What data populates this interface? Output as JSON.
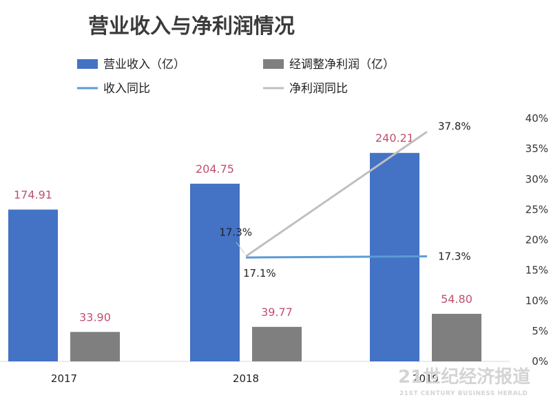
{
  "chart_data": {
    "type": "bar",
    "title": "营业收入与净利润情况",
    "categories": [
      "2017",
      "2018",
      "2019"
    ],
    "series": [
      {
        "name": "营业收入（亿）",
        "kind": "bar",
        "axis": "left",
        "color": "#4472c4",
        "values": [
          174.91,
          204.75,
          240.21
        ],
        "labels": [
          "174.91",
          "204.75",
          "240.21"
        ]
      },
      {
        "name": "经调整净利润（亿）",
        "kind": "bar",
        "axis": "left",
        "color": "#7f7f7f",
        "values": [
          33.9,
          39.77,
          54.8
        ],
        "labels": [
          "33.90",
          "39.77",
          "54.80"
        ]
      },
      {
        "name": "收入同比",
        "kind": "line",
        "axis": "right",
        "color": "#5b9bd5",
        "x": [
          "2018",
          "2019"
        ],
        "values": [
          17.1,
          17.3
        ],
        "labels": [
          "17.1%",
          "17.3%"
        ]
      },
      {
        "name": "净利润同比",
        "kind": "line",
        "axis": "right",
        "color": "#bfbfbf",
        "x": [
          "2018",
          "2019"
        ],
        "values": [
          17.3,
          37.8
        ],
        "labels": [
          "17.3%",
          "37.8%"
        ]
      }
    ],
    "y_left": {
      "range": [
        0,
        280
      ],
      "ticks_shown": false
    },
    "y_right": {
      "range": [
        0,
        40
      ],
      "ticks": [
        "0%",
        "5%",
        "10%",
        "15%",
        "20%",
        "25%",
        "30%",
        "35%",
        "40%"
      ]
    },
    "grid": false,
    "legend": "top"
  },
  "watermark": {
    "cn": "21世纪经济报道",
    "en": "21ST CENTURY BUSINESS HERALD"
  }
}
